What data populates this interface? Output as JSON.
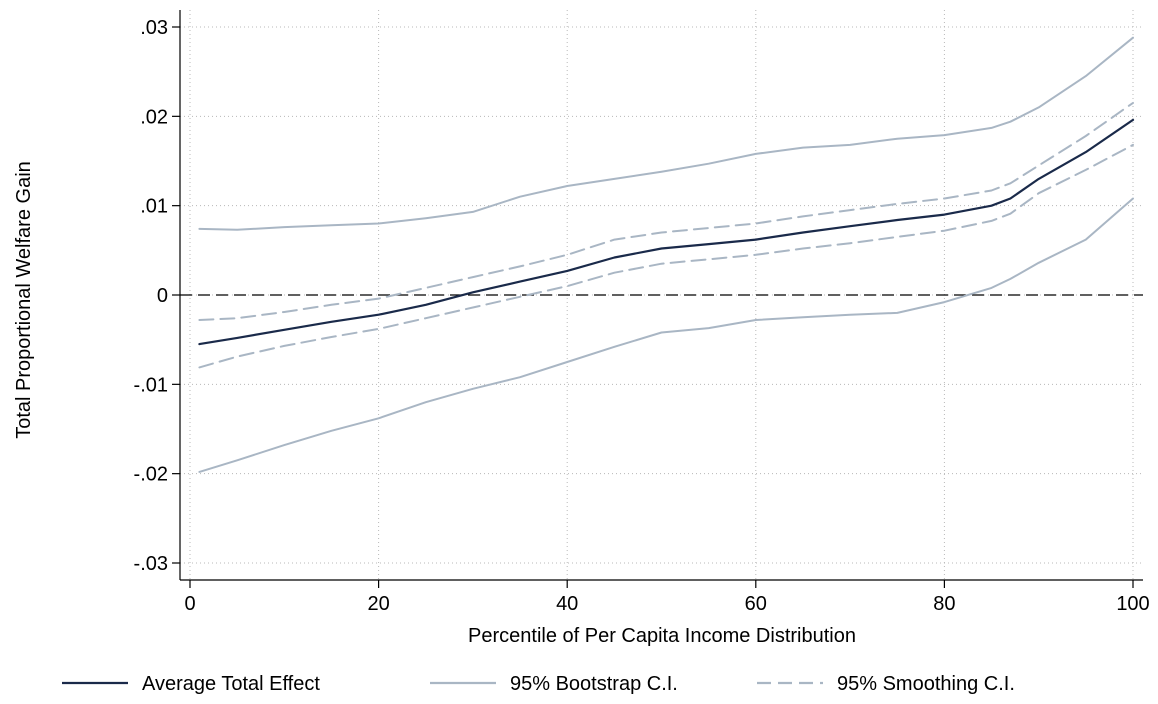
{
  "chart_data": {
    "type": "line",
    "xlabel": "Percentile of Per Capita Income Distribution",
    "ylabel": "Total Proportional Welfare Gain",
    "xlim": [
      0,
      100
    ],
    "ylim": [
      -0.03,
      0.03
    ],
    "xticks": [
      {
        "value": 0,
        "label": "0"
      },
      {
        "value": 20,
        "label": "20"
      },
      {
        "value": 40,
        "label": "40"
      },
      {
        "value": 60,
        "label": "60"
      },
      {
        "value": 80,
        "label": "80"
      },
      {
        "value": 100,
        "label": "100"
      }
    ],
    "yticks": [
      {
        "value": 0.03,
        "label": ".03"
      },
      {
        "value": 0.02,
        "label": ".02"
      },
      {
        "value": 0.01,
        "label": ".01"
      },
      {
        "value": 0,
        "label": "0"
      },
      {
        "value": -0.01,
        "label": "-.01"
      },
      {
        "value": -0.02,
        "label": "-.02"
      },
      {
        "value": -0.03,
        "label": "-.03"
      }
    ],
    "grid": true,
    "reference_line": {
      "y": 0,
      "style": "dashed"
    },
    "legend_position": "bottom",
    "x": [
      1,
      5,
      10,
      15,
      20,
      25,
      30,
      35,
      40,
      45,
      50,
      55,
      60,
      65,
      70,
      75,
      80,
      85,
      87,
      90,
      95,
      100
    ],
    "series": [
      {
        "name": "Average Total Effect",
        "color": "#1a2a4a",
        "dash": "solid",
        "values": [
          -0.0055,
          -0.0048,
          -0.0039,
          -0.003,
          -0.0022,
          -0.0011,
          0.0003,
          0.0015,
          0.0027,
          0.0042,
          0.0052,
          0.0057,
          0.0062,
          0.007,
          0.0077,
          0.0084,
          0.009,
          0.01,
          0.0108,
          0.013,
          0.016,
          0.0196
        ]
      },
      {
        "name": "95% Bootstrap C.I.",
        "color": "#a9b6c4",
        "dash": "solid",
        "values": [
          0.0074,
          0.0073,
          0.0076,
          0.0078,
          0.008,
          0.0086,
          0.0093,
          0.011,
          0.0122,
          0.013,
          0.0138,
          0.0147,
          0.0158,
          0.0165,
          0.0168,
          0.0175,
          0.0179,
          0.0187,
          0.0194,
          0.021,
          0.0245,
          0.0288
        ]
      },
      {
        "name": "95% Bootstrap C.I.",
        "color": "#a9b6c4",
        "dash": "solid",
        "values": [
          -0.0198,
          -0.0185,
          -0.0168,
          -0.0152,
          -0.0138,
          -0.012,
          -0.0105,
          -0.0092,
          -0.0075,
          -0.0058,
          -0.0042,
          -0.0037,
          -0.0028,
          -0.0025,
          -0.0022,
          -0.002,
          -0.0008,
          0.0008,
          0.0018,
          0.0036,
          0.0062,
          0.0108
        ]
      },
      {
        "name": "95% Smoothing C.I.",
        "color": "#a9b6c4",
        "dash": "dashed",
        "values": [
          -0.0028,
          -0.0026,
          -0.0019,
          -0.0011,
          -0.0004,
          0.0008,
          0.002,
          0.0032,
          0.0045,
          0.0062,
          0.007,
          0.0075,
          0.008,
          0.0088,
          0.0095,
          0.0102,
          0.0108,
          0.0117,
          0.0125,
          0.0145,
          0.0178,
          0.0215
        ]
      },
      {
        "name": "95% Smoothing C.I.",
        "color": "#a9b6c4",
        "dash": "dashed",
        "values": [
          -0.0081,
          -0.0069,
          -0.0057,
          -0.0047,
          -0.0038,
          -0.0026,
          -0.0014,
          -0.0002,
          0.001,
          0.0025,
          0.0035,
          0.004,
          0.0045,
          0.0052,
          0.0058,
          0.0065,
          0.0072,
          0.0083,
          0.0091,
          0.0114,
          0.014,
          0.0168
        ]
      }
    ],
    "legend": [
      {
        "label": "Average Total Effect",
        "color": "#1a2a4a",
        "dash": "solid"
      },
      {
        "label": "95% Bootstrap C.I.",
        "color": "#a9b6c4",
        "dash": "solid"
      },
      {
        "label": "95% Smoothing C.I.",
        "color": "#a9b6c4",
        "dash": "dashed"
      }
    ]
  }
}
